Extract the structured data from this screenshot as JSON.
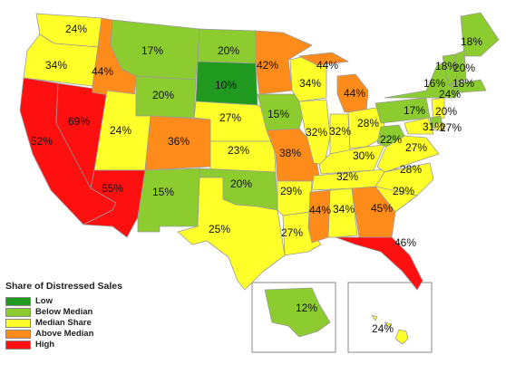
{
  "legend": {
    "title": "Share of Distressed Sales",
    "items": [
      {
        "label": "Low",
        "color": "#1f9a1f"
      },
      {
        "label": "Below Median",
        "color": "#8ccc2e"
      },
      {
        "label": "Median Share",
        "color": "#ffff2a"
      },
      {
        "label": "Above Median",
        "color": "#ff8c1a"
      },
      {
        "label": "High",
        "color": "#ff1010"
      }
    ]
  },
  "states": [
    {
      "id": "WA",
      "value": "24%",
      "category": "Median Share"
    },
    {
      "id": "OR",
      "value": "34%",
      "category": "Median Share"
    },
    {
      "id": "CA",
      "value": "52%",
      "category": "High"
    },
    {
      "id": "NV",
      "value": "69%",
      "category": "High"
    },
    {
      "id": "ID",
      "value": "44%",
      "category": "Above Median"
    },
    {
      "id": "MT",
      "value": "17%",
      "category": "Below Median"
    },
    {
      "id": "WY",
      "value": "20%",
      "category": "Below Median"
    },
    {
      "id": "UT",
      "value": "24%",
      "category": "Median Share"
    },
    {
      "id": "AZ",
      "value": "55%",
      "category": "High"
    },
    {
      "id": "CO",
      "value": "36%",
      "category": "Above Median"
    },
    {
      "id": "NM",
      "value": "15%",
      "category": "Below Median"
    },
    {
      "id": "ND",
      "value": "20%",
      "category": "Below Median"
    },
    {
      "id": "SD",
      "value": "10%",
      "category": "Low"
    },
    {
      "id": "NE",
      "value": "27%",
      "category": "Median Share"
    },
    {
      "id": "KS",
      "value": "23%",
      "category": "Median Share"
    },
    {
      "id": "OK",
      "value": "20%",
      "category": "Below Median"
    },
    {
      "id": "TX",
      "value": "25%",
      "category": "Median Share"
    },
    {
      "id": "MN",
      "value": "42%",
      "category": "Above Median"
    },
    {
      "id": "IA",
      "value": "15%",
      "category": "Below Median"
    },
    {
      "id": "MO",
      "value": "38%",
      "category": "Above Median"
    },
    {
      "id": "AR",
      "value": "29%",
      "category": "Median Share"
    },
    {
      "id": "LA",
      "value": "27%",
      "category": "Median Share"
    },
    {
      "id": "WI",
      "value": "34%",
      "category": "Median Share"
    },
    {
      "id": "UP",
      "value": "44%",
      "category": "Above Median"
    },
    {
      "id": "MI",
      "value": "44%",
      "category": "Above Median"
    },
    {
      "id": "IL",
      "value": "32%",
      "category": "Median Share"
    },
    {
      "id": "IN",
      "value": "32%",
      "category": "Median Share"
    },
    {
      "id": "OH",
      "value": "28%",
      "category": "Median Share"
    },
    {
      "id": "KY",
      "value": "30%",
      "category": "Median Share"
    },
    {
      "id": "TN",
      "value": "32%",
      "category": "Median Share"
    },
    {
      "id": "MS",
      "value": "44%",
      "category": "Above Median"
    },
    {
      "id": "AL",
      "value": "34%",
      "category": "Median Share"
    },
    {
      "id": "GA",
      "value": "45%",
      "category": "Above Median"
    },
    {
      "id": "FL",
      "value": "46%",
      "category": "High"
    },
    {
      "id": "SC",
      "value": "29%",
      "category": "Median Share"
    },
    {
      "id": "NC",
      "value": "28%",
      "category": "Median Share"
    },
    {
      "id": "VA",
      "value": "27%",
      "category": "Median Share"
    },
    {
      "id": "WV",
      "value": "22%",
      "category": "Below Median"
    },
    {
      "id": "PA",
      "value": "17%",
      "category": "Below Median"
    },
    {
      "id": "NY",
      "value": "16%",
      "category": "Below Median"
    },
    {
      "id": "ME",
      "value": "18%",
      "category": "Below Median"
    },
    {
      "id": "VT",
      "value": "18%",
      "category": "Below Median"
    },
    {
      "id": "NH",
      "value": "20%",
      "category": "Below Median"
    },
    {
      "id": "MA",
      "value": "18%",
      "category": "Below Median"
    },
    {
      "id": "NJ",
      "value": "24%",
      "category": "Median Share"
    },
    {
      "id": "DE",
      "value": "20%",
      "category": "Below Median"
    },
    {
      "id": "MD",
      "value": "31%",
      "category": "Median Share"
    },
    {
      "id": "DC",
      "value": "27%",
      "category": "Median Share"
    },
    {
      "id": "AK",
      "value": "12%",
      "category": "Below Median"
    },
    {
      "id": "HI",
      "value": "24%",
      "category": "Median Share"
    }
  ]
}
